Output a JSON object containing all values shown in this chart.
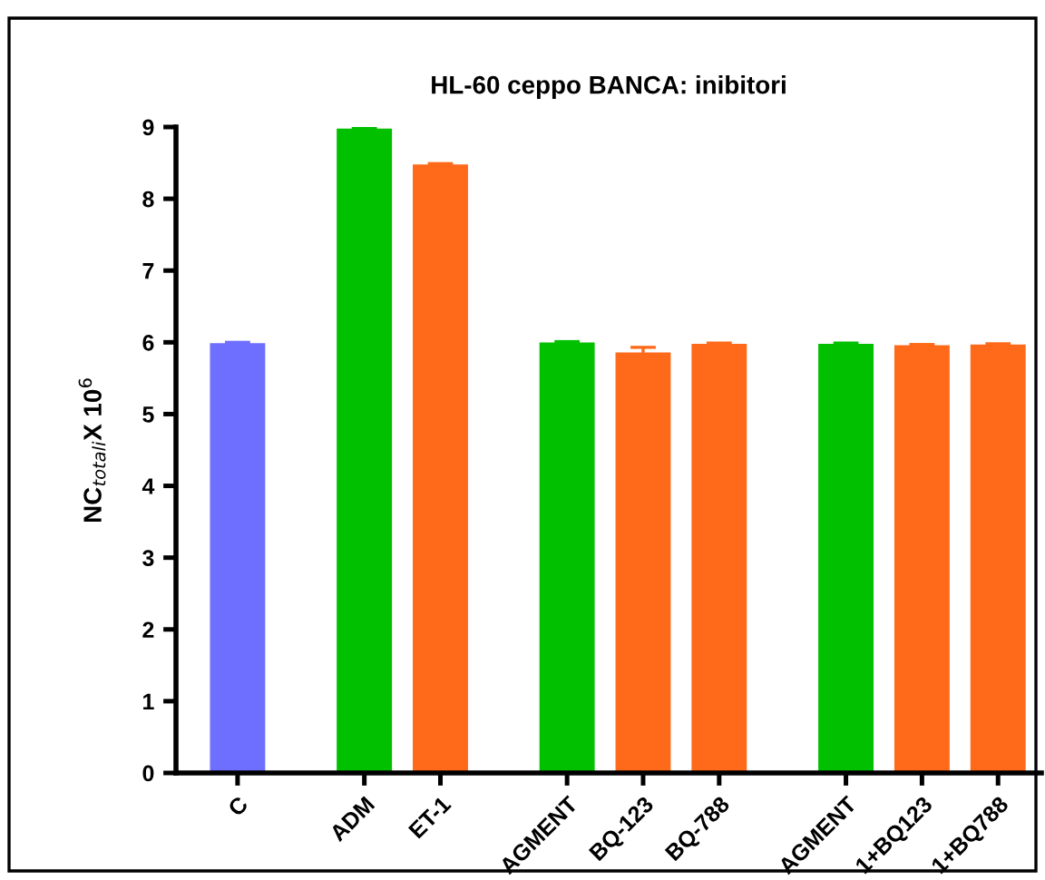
{
  "chart_data": {
    "type": "bar",
    "title": "HL-60 ceppo BANCA: inibitori",
    "ylabel": "NC$_{totali}$X 10$^{6}$",
    "categories": [
      "C",
      "ADM",
      "ET-1",
      "AGMENT",
      "BQ-123",
      "BQ-788",
      "AGMENT",
      "1+BQ123",
      "1+BQ788"
    ],
    "values": [
      5.98,
      8.97,
      8.47,
      5.99,
      5.85,
      5.97,
      5.97,
      5.95,
      5.96
    ],
    "errors": [
      0.02,
      0.02,
      0.02,
      0.02,
      0.08,
      0.02,
      0.02,
      0.02,
      0.02
    ],
    "colors": [
      "#6f6fff",
      "#00c000",
      "#ff6a1a",
      "#00c000",
      "#ff6a1a",
      "#ff6a1a",
      "#00c000",
      "#ff6a1a",
      "#ff6a1a"
    ],
    "ylim": [
      0,
      9
    ],
    "yticks": [
      0,
      1,
      2,
      3,
      4,
      5,
      6,
      7,
      8,
      9
    ],
    "grid": false,
    "legend": false
  }
}
